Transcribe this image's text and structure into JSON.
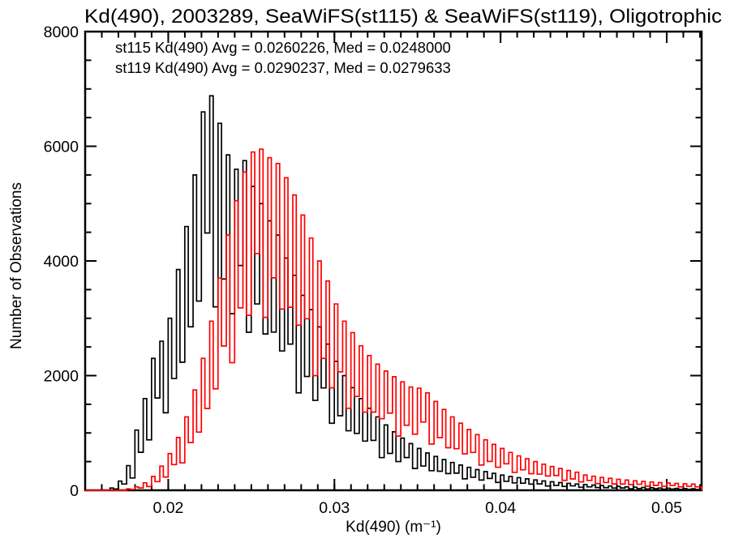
{
  "title": "Kd(490), 2003289, SeaWiFS(st115) & SeaWiFS(st119), Oligotrophic",
  "legend": [
    {
      "label": "st115 Kd(490) Avg = 0.0260226, Med = 0.0248000",
      "color": "#000000"
    },
    {
      "label": "st119 Kd(490) Avg = 0.0290237, Med = 0.0279633",
      "color": "#ff0000"
    }
  ],
  "chart_data": {
    "type": "bar",
    "title": "Kd(490), 2003289, SeaWiFS(st115) & SeaWiFS(st119), Oligotrophic",
    "xlabel": "Kd(490) (m⁻¹)",
    "ylabel": "Number of Observations",
    "xlim": [
      0.015,
      0.0521
    ],
    "ylim": [
      0,
      8000
    ],
    "x_major_ticks": [
      0.02,
      0.03,
      0.04,
      0.05
    ],
    "x_tick_labels": [
      "0.02",
      "0.03",
      "0.04",
      "0.05"
    ],
    "x_minor_step": 0.001,
    "y_major_ticks": [
      0,
      2000,
      4000,
      6000,
      8000
    ],
    "y_tick_labels": [
      "0",
      "2000",
      "4000",
      "6000",
      "8000"
    ],
    "y_minor_step": 500,
    "grid": false,
    "legend_position": "top-left-inside",
    "bin_period": 0.0005,
    "spike_width_frac": 0.42,
    "valley_ratio_cycle": [
      0.6,
      0.68,
      0.5,
      0.63,
      0.55,
      0.7,
      0.52,
      0.65,
      0.58,
      0.62
    ],
    "series": [
      {
        "name": "st115",
        "sensor": "SeaWiFS",
        "color": "#000000",
        "avg": 0.0260226,
        "med": 0.0248,
        "x_start": 0.0166,
        "spikes": [
          40,
          160,
          430,
          1050,
          1600,
          2300,
          2600,
          3000,
          3850,
          4600,
          5500,
          6600,
          6880,
          6400,
          5850,
          5600,
          5750,
          5300,
          5000,
          4700,
          4450,
          4050,
          3750,
          3400,
          3150,
          2850,
          2550,
          2250,
          2000,
          1790,
          1600,
          1430,
          1280,
          1140,
          1020,
          910,
          815,
          730,
          650,
          590,
          535,
          485,
          440,
          400,
          360,
          325,
          295,
          265,
          240,
          220,
          200,
          180,
          163,
          148,
          134,
          121,
          110,
          100,
          90,
          82,
          74,
          67,
          60,
          54,
          49,
          44,
          40,
          36,
          33,
          30,
          27
        ]
      },
      {
        "name": "st119",
        "sensor": "SeaWiFS",
        "color": "#ff0000",
        "avg": 0.0290237,
        "med": 0.0279633,
        "x_start": 0.0176,
        "spikes": [
          25,
          60,
          130,
          240,
          420,
          640,
          920,
          1280,
          1750,
          2300,
          2950,
          3700,
          4450,
          5050,
          5550,
          5900,
          5950,
          5800,
          5700,
          5450,
          5150,
          4800,
          4400,
          4000,
          3650,
          3250,
          2950,
          2750,
          2520,
          2350,
          2200,
          2080,
          1980,
          1890,
          1800,
          1780,
          1700,
          1550,
          1410,
          1280,
          1170,
          1060,
          970,
          880,
          800,
          730,
          660,
          600,
          550,
          500,
          455,
          415,
          380,
          345,
          315,
          265,
          245,
          225,
          208,
          192,
          178,
          165,
          154,
          144,
          135,
          127,
          120,
          114,
          108
        ]
      }
    ]
  },
  "axes_color": "#000000",
  "background_color": "#ffffff"
}
